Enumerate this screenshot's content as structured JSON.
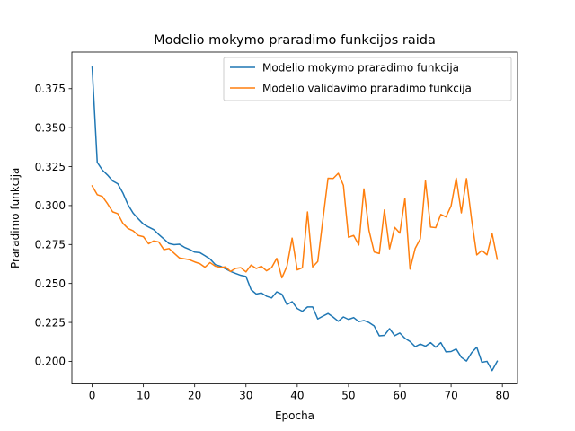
{
  "chart_data": {
    "type": "line",
    "title": "Modelio mokymo praradimo funkcijos raida",
    "xlabel": "Epocha",
    "ylabel": "Praradimo funkcija",
    "xlim": [
      -3.95,
      82.95
    ],
    "ylim": [
      0.1855,
      0.3985
    ],
    "xticks": [
      0,
      10,
      20,
      30,
      40,
      50,
      60,
      70,
      80
    ],
    "yticks": [
      0.2,
      0.225,
      0.25,
      0.275,
      0.3,
      0.325,
      0.35,
      0.375
    ],
    "ytick_labels": [
      "0.200",
      "0.225",
      "0.250",
      "0.275",
      "0.300",
      "0.325",
      "0.350",
      "0.375"
    ],
    "grid": false,
    "legend_position": "upper right",
    "series": [
      {
        "name": "Modelio mokymo praradimo funkcija",
        "color": "#1f77b4",
        "x": [
          0,
          1,
          2,
          3,
          4,
          5,
          6,
          7,
          8,
          9,
          10,
          11,
          12,
          13,
          14,
          15,
          16,
          17,
          18,
          19,
          20,
          21,
          22,
          23,
          24,
          25,
          26,
          27,
          28,
          29,
          30,
          31,
          32,
          33,
          34,
          35,
          36,
          37,
          38,
          39,
          40,
          41,
          42,
          43,
          44,
          45,
          46,
          47,
          48,
          49,
          50,
          51,
          52,
          53,
          54,
          55,
          56,
          57,
          58,
          59,
          60,
          61,
          62,
          63,
          64,
          65,
          66,
          67,
          68,
          69,
          70,
          71,
          72,
          73,
          74,
          75,
          76,
          77,
          78,
          79
        ],
        "values": [
          0.3888,
          0.3277,
          0.3228,
          0.3196,
          0.3158,
          0.314,
          0.3081,
          0.3005,
          0.2951,
          0.2915,
          0.2881,
          0.2862,
          0.2846,
          0.2814,
          0.2785,
          0.2756,
          0.2749,
          0.2752,
          0.2732,
          0.2718,
          0.2701,
          0.2698,
          0.2678,
          0.2657,
          0.2621,
          0.2611,
          0.2594,
          0.2577,
          0.2564,
          0.2552,
          0.2545,
          0.246,
          0.2432,
          0.2439,
          0.2418,
          0.2407,
          0.2446,
          0.2431,
          0.2364,
          0.2383,
          0.2339,
          0.2321,
          0.2349,
          0.2349,
          0.2272,
          0.229,
          0.2307,
          0.2284,
          0.2257,
          0.2285,
          0.2269,
          0.2281,
          0.2255,
          0.2262,
          0.2249,
          0.2227,
          0.2164,
          0.2167,
          0.221,
          0.2165,
          0.2182,
          0.2148,
          0.2127,
          0.2094,
          0.2111,
          0.2097,
          0.212,
          0.2091,
          0.212,
          0.2061,
          0.2063,
          0.2079,
          0.2026,
          0.2002,
          0.2055,
          0.2091,
          0.1994,
          0.2,
          0.1941,
          0.2001
        ]
      },
      {
        "name": "Modelio validavimo praradimo funkcija",
        "color": "#ff7f0e",
        "x": [
          0,
          1,
          2,
          3,
          4,
          5,
          6,
          7,
          8,
          9,
          10,
          11,
          12,
          13,
          14,
          15,
          16,
          17,
          18,
          19,
          20,
          21,
          22,
          23,
          24,
          25,
          26,
          27,
          28,
          29,
          30,
          31,
          32,
          33,
          34,
          35,
          36,
          37,
          38,
          39,
          40,
          41,
          42,
          43,
          44,
          45,
          46,
          47,
          48,
          49,
          50,
          51,
          52,
          53,
          54,
          55,
          56,
          57,
          58,
          59,
          60,
          61,
          62,
          63,
          64,
          65,
          66,
          67,
          68,
          69,
          70,
          71,
          72,
          73,
          74,
          75,
          76,
          77,
          78,
          79
        ],
        "values": [
          0.3126,
          0.307,
          0.3058,
          0.3012,
          0.296,
          0.2948,
          0.2886,
          0.2853,
          0.2838,
          0.2808,
          0.28,
          0.2755,
          0.2773,
          0.2766,
          0.2717,
          0.2724,
          0.2694,
          0.2664,
          0.2658,
          0.2652,
          0.2638,
          0.2627,
          0.2604,
          0.2634,
          0.2611,
          0.2603,
          0.2606,
          0.2577,
          0.2597,
          0.2601,
          0.2574,
          0.2618,
          0.2596,
          0.261,
          0.2581,
          0.2602,
          0.2661,
          0.2536,
          0.2611,
          0.2791,
          0.2587,
          0.2601,
          0.2959,
          0.2606,
          0.2641,
          0.291,
          0.3175,
          0.3174,
          0.3207,
          0.313,
          0.2796,
          0.2808,
          0.2747,
          0.3107,
          0.2839,
          0.2702,
          0.2692,
          0.2972,
          0.2722,
          0.286,
          0.2823,
          0.3047,
          0.2592,
          0.2725,
          0.2787,
          0.3159,
          0.2862,
          0.2858,
          0.2943,
          0.2927,
          0.2998,
          0.3176,
          0.2953,
          0.3173,
          0.291,
          0.2683,
          0.2712,
          0.2684,
          0.282,
          0.2655
        ]
      }
    ]
  }
}
